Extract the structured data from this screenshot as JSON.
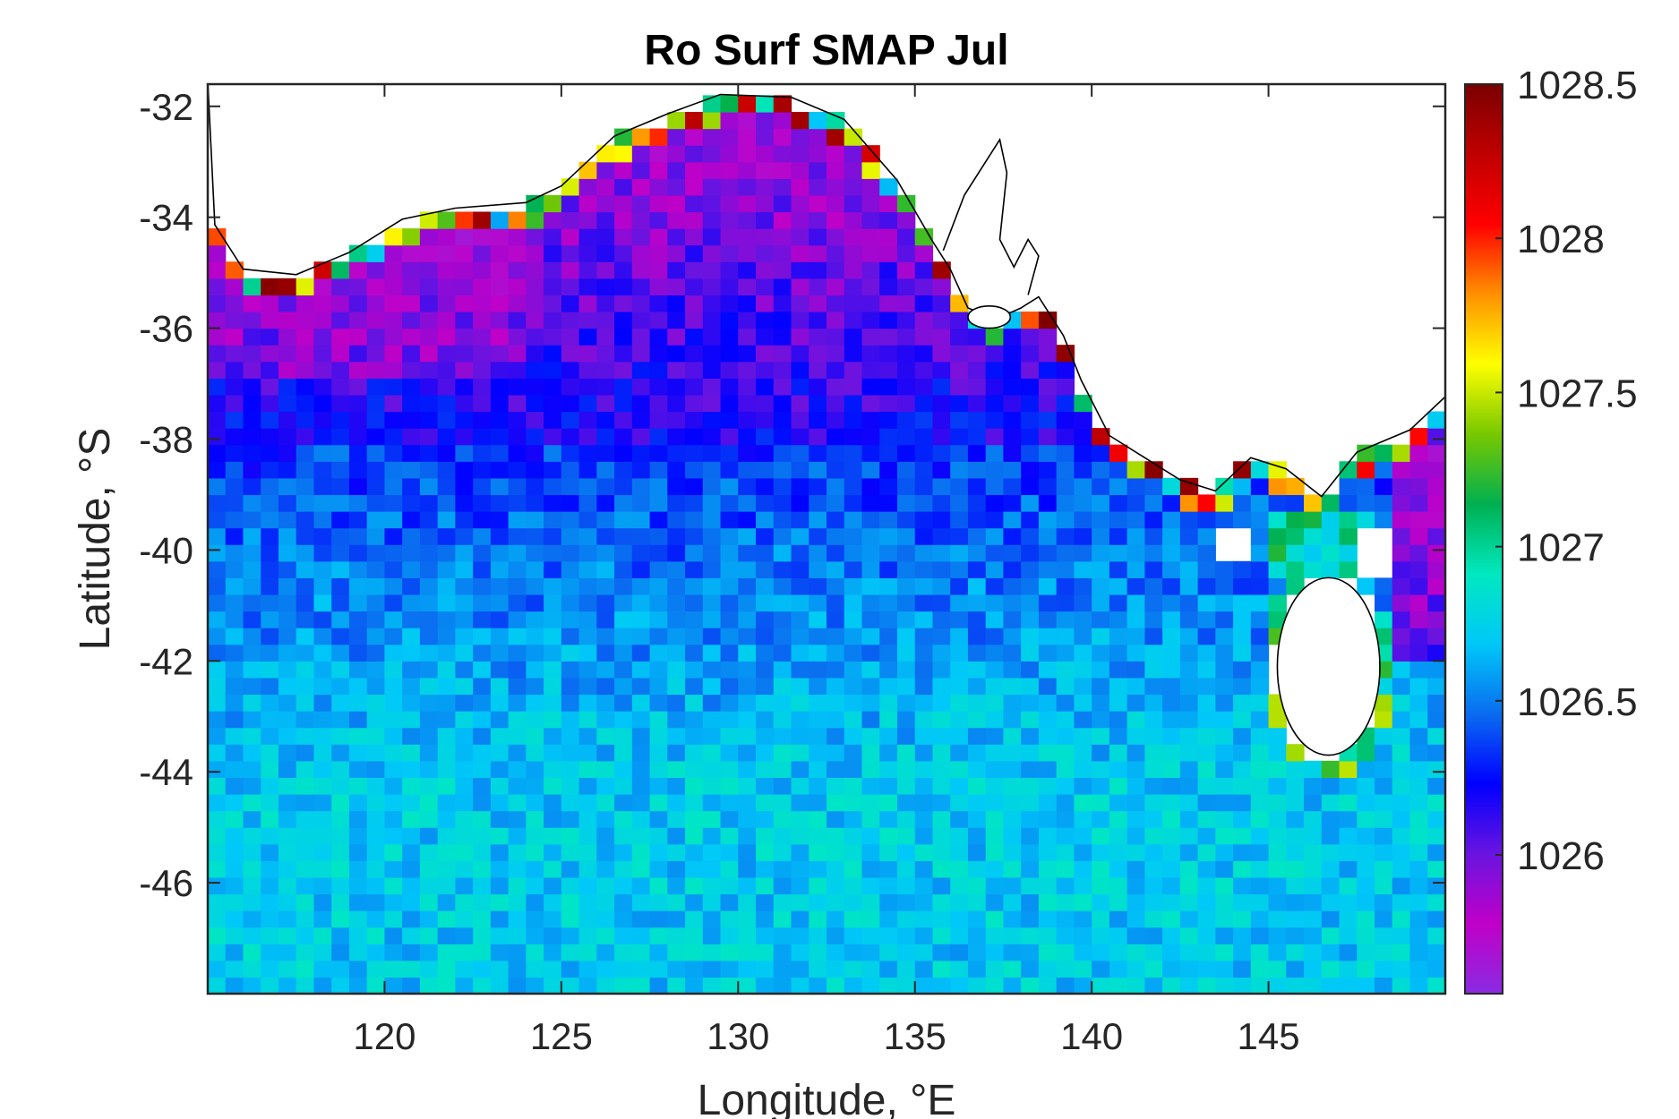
{
  "chart_data": {
    "type": "heatmap",
    "title": "Ro Surf SMAP Jul",
    "xlabel": "Longitude, °E",
    "ylabel": "Latitude, °S",
    "xlim": [
      115,
      150
    ],
    "ylim": [
      -48,
      -31.6
    ],
    "x_ticks": [
      120,
      125,
      130,
      135,
      140,
      145
    ],
    "x_tick_labels": [
      "120",
      "125",
      "130",
      "135",
      "140",
      "145"
    ],
    "y_ticks": [
      -32,
      -34,
      -36,
      -38,
      -40,
      -42,
      -44,
      -46
    ],
    "y_tick_labels": [
      "-32",
      "-34",
      "-36",
      "-38",
      "-40",
      "-42",
      "-44",
      "-46"
    ],
    "grid": false,
    "colormap": "jet-like (purple-blue-cyan-green-yellow-red-darkred)",
    "colorbar": {
      "location": "right",
      "range": [
        1025.55,
        1028.5
      ],
      "ticks": [
        1026,
        1026.5,
        1027,
        1027.5,
        1028,
        1028.5
      ],
      "tick_labels": [
        "1026",
        "1026.5",
        "1027",
        "1027.5",
        "1028",
        "1028.5"
      ],
      "colors": [
        "#8a2be2",
        "#c000c8",
        "#6a14e0",
        "#0000ff",
        "#0a6cf0",
        "#00c8f8",
        "#00e8c0",
        "#00b050",
        "#78c800",
        "#ffff00",
        "#ff9000",
        "#ff0000",
        "#c00000",
        "#7a0000"
      ]
    },
    "region_summary": {
      "north_coast_band": 1025.9,
      "central": 1026.4,
      "south_open_ocean": 1026.7,
      "coastal_edges": 1027.5
    },
    "land_masses": [
      "Southern Australia",
      "Tasmania",
      "Kangaroo Island"
    ]
  }
}
